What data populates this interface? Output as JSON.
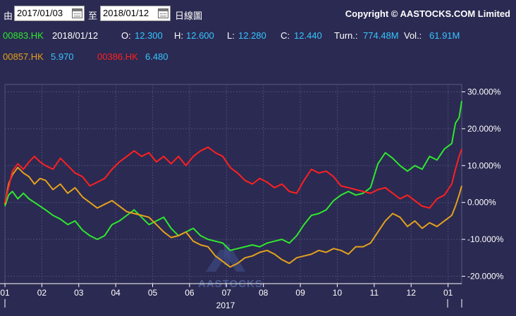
{
  "toolbar": {
    "from_label": "由",
    "from_date": "2017/01/03",
    "to_label": "至",
    "to_date": "2018/01/12",
    "chart_type": "日線圖",
    "copyright": "Copyright © AASTOCKS.COM Limited"
  },
  "quote": {
    "code": "00883.HK",
    "date": "2018/01/12",
    "o_label": "O:",
    "o": "12.300",
    "h_label": "H:",
    "h": "12.600",
    "l_label": "L:",
    "l": "12.280",
    "c_label": "C:",
    "c": "12.440",
    "turn_label": "Turn.:",
    "turn": "774.48M",
    "vol_label": "Vol.:",
    "vol": "61.91M"
  },
  "compare": [
    {
      "code": "00857.HK",
      "value": "5.970"
    },
    {
      "code": "00386.HK",
      "value": "6.480"
    }
  ],
  "watermark": "AASTOCKS",
  "colors": {
    "background": "#2b2a52",
    "green": "#2ee82e",
    "orange": "#e4a11b",
    "red": "#ff2020",
    "cyan": "#35c5ff",
    "grid": "#4a4a72"
  },
  "chart_data": {
    "type": "line",
    "y_unit": "%",
    "ylim": [
      -22,
      32
    ],
    "y_ticks": [
      "30.000%",
      "20.000%",
      "10.000%",
      "0.000%",
      "-10.000%",
      "-20.000%"
    ],
    "y_tick_values": [
      30,
      20,
      10,
      0,
      -10,
      -20
    ],
    "x_ticks": [
      "01",
      "02",
      "03",
      "04",
      "05",
      "06",
      "07",
      "08",
      "09",
      "10",
      "11",
      "12",
      "01"
    ],
    "x_tick_month_index": [
      0,
      1,
      2,
      3,
      4,
      5,
      6,
      7,
      8,
      9,
      10,
      11,
      12
    ],
    "year_label": "2017",
    "grid": true,
    "series": [
      {
        "name": "00883.HK",
        "color": "#2ee82e",
        "x": [
          0.0,
          0.1,
          0.2,
          0.35,
          0.5,
          0.65,
          0.8,
          0.95,
          1.1,
          1.3,
          1.5,
          1.7,
          1.9,
          2.1,
          2.3,
          2.5,
          2.7,
          2.9,
          3.1,
          3.3,
          3.5,
          3.7,
          3.9,
          4.1,
          4.3,
          4.5,
          4.7,
          4.9,
          5.1,
          5.3,
          5.5,
          5.7,
          5.9,
          6.1,
          6.3,
          6.5,
          6.7,
          6.9,
          7.1,
          7.3,
          7.5,
          7.7,
          7.9,
          8.1,
          8.3,
          8.5,
          8.7,
          8.9,
          9.1,
          9.3,
          9.5,
          9.7,
          9.9,
          10.1,
          10.3,
          10.5,
          10.7,
          10.9,
          11.1,
          11.3,
          11.5,
          11.7,
          11.9,
          12.1,
          12.2,
          12.3,
          12.37
        ],
        "y": [
          -1.0,
          2.0,
          3.0,
          1.0,
          2.5,
          1.0,
          0.0,
          -1.0,
          -2.0,
          -3.5,
          -4.5,
          -6.0,
          -5.0,
          -7.5,
          -9.0,
          -10.0,
          -9.0,
          -6.0,
          -5.0,
          -3.5,
          -2.0,
          -4.0,
          -6.0,
          -5.0,
          -4.0,
          -7.0,
          -9.0,
          -8.0,
          -7.0,
          -9.0,
          -10.0,
          -10.5,
          -11.0,
          -13.0,
          -12.5,
          -12.0,
          -11.5,
          -12.0,
          -11.0,
          -10.5,
          -10.0,
          -11.0,
          -9.0,
          -6.0,
          -3.5,
          -3.0,
          -2.0,
          0.5,
          2.0,
          3.0,
          2.0,
          2.5,
          4.0,
          10.5,
          13.5,
          12.0,
          10.0,
          8.5,
          10.0,
          9.0,
          12.5,
          11.5,
          14.5,
          16.0,
          21.5,
          23.0,
          27.5
        ]
      },
      {
        "name": "00857.HK",
        "color": "#e4a11b",
        "x": [
          0.0,
          0.1,
          0.2,
          0.35,
          0.5,
          0.65,
          0.8,
          0.95,
          1.1,
          1.3,
          1.5,
          1.7,
          1.9,
          2.1,
          2.3,
          2.5,
          2.7,
          2.9,
          3.1,
          3.3,
          3.5,
          3.7,
          3.9,
          4.1,
          4.3,
          4.5,
          4.7,
          4.9,
          5.1,
          5.3,
          5.5,
          5.7,
          5.9,
          6.1,
          6.3,
          6.5,
          6.7,
          6.9,
          7.1,
          7.3,
          7.5,
          7.7,
          7.9,
          8.1,
          8.3,
          8.5,
          8.7,
          8.9,
          9.1,
          9.3,
          9.5,
          9.7,
          9.9,
          10.1,
          10.3,
          10.5,
          10.7,
          10.9,
          11.1,
          11.3,
          11.5,
          11.7,
          11.9,
          12.1,
          12.2,
          12.3,
          12.37
        ],
        "y": [
          -0.5,
          5.0,
          7.5,
          9.5,
          8.0,
          7.0,
          5.0,
          6.5,
          6.0,
          3.5,
          5.0,
          2.5,
          4.0,
          1.5,
          0.0,
          -1.5,
          -0.5,
          0.5,
          -1.0,
          -2.5,
          -3.0,
          -3.5,
          -4.0,
          -6.0,
          -8.0,
          -9.5,
          -9.0,
          -8.0,
          -10.5,
          -11.5,
          -12.0,
          -14.5,
          -16.0,
          -17.5,
          -16.5,
          -15.0,
          -14.5,
          -13.5,
          -13.0,
          -14.0,
          -15.5,
          -16.5,
          -15.0,
          -14.5,
          -14.0,
          -13.0,
          -13.5,
          -12.5,
          -13.0,
          -14.0,
          -12.0,
          -12.0,
          -11.0,
          -8.0,
          -5.0,
          -3.0,
          -4.0,
          -6.5,
          -5.0,
          -7.0,
          -5.5,
          -6.5,
          -5.0,
          -3.5,
          -1.0,
          2.0,
          4.5
        ]
      },
      {
        "name": "00386.HK",
        "color": "#ff2020",
        "x": [
          0.0,
          0.1,
          0.2,
          0.35,
          0.5,
          0.65,
          0.8,
          0.95,
          1.1,
          1.3,
          1.5,
          1.7,
          1.9,
          2.1,
          2.3,
          2.5,
          2.7,
          2.9,
          3.1,
          3.3,
          3.5,
          3.7,
          3.9,
          4.1,
          4.3,
          4.5,
          4.7,
          4.9,
          5.1,
          5.3,
          5.5,
          5.7,
          5.9,
          6.1,
          6.3,
          6.5,
          6.7,
          6.9,
          7.1,
          7.3,
          7.5,
          7.7,
          7.9,
          8.1,
          8.3,
          8.5,
          8.7,
          8.9,
          9.1,
          9.3,
          9.5,
          9.7,
          9.9,
          10.1,
          10.3,
          10.5,
          10.7,
          10.9,
          11.1,
          11.3,
          11.5,
          11.7,
          11.9,
          12.1,
          12.2,
          12.3,
          12.37
        ],
        "y": [
          0.0,
          4.0,
          8.5,
          10.5,
          9.0,
          11.0,
          12.5,
          11.0,
          10.0,
          9.0,
          12.0,
          10.0,
          8.0,
          7.0,
          4.5,
          5.5,
          6.5,
          9.0,
          11.0,
          12.5,
          14.0,
          12.5,
          13.5,
          11.0,
          12.5,
          10.5,
          12.5,
          10.0,
          12.5,
          14.0,
          15.0,
          13.5,
          12.5,
          9.5,
          8.0,
          6.0,
          5.0,
          6.5,
          5.5,
          4.0,
          5.0,
          3.0,
          2.5,
          6.0,
          9.0,
          8.0,
          8.5,
          7.0,
          4.5,
          4.0,
          3.5,
          3.0,
          2.5,
          3.5,
          4.0,
          2.5,
          1.0,
          2.0,
          0.5,
          -1.0,
          -1.5,
          1.0,
          2.0,
          5.0,
          9.0,
          12.5,
          14.5
        ]
      }
    ]
  }
}
